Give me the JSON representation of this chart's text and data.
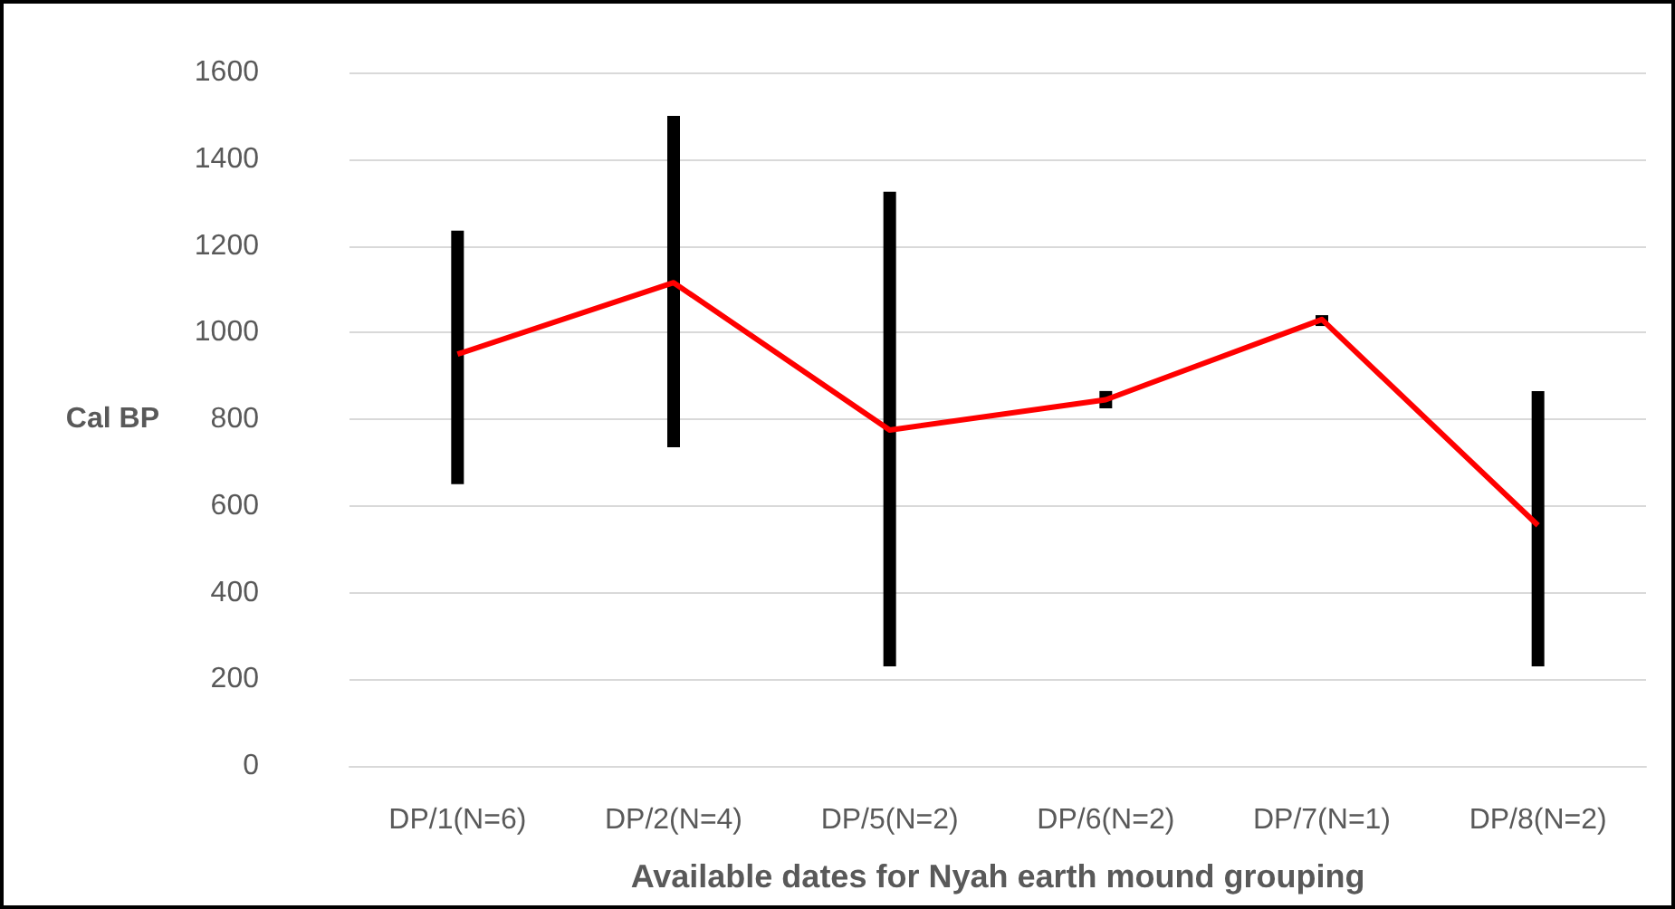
{
  "chart_data": {
    "type": "line",
    "xlabel": "Available dates for Nyah earth mound grouping",
    "ylabel": "Cal BP",
    "categories": [
      "DP/1(N=6)",
      "DP/2(N=4)",
      "DP/5(N=2)",
      "DP/6(N=2)",
      "DP/7(N=1)",
      "DP/8(N=2)"
    ],
    "series": [
      {
        "color": "#ff0000",
        "values": [
          950,
          1115,
          775,
          845,
          1030,
          555
        ],
        "errors": [
          [
            650,
            1235
          ],
          [
            735,
            1500
          ],
          [
            230,
            1325
          ],
          [
            825,
            865
          ],
          [
            1015,
            1040
          ],
          [
            230,
            865
          ]
        ]
      }
    ],
    "ylim": [
      0,
      1600
    ],
    "yticks": [
      0,
      200,
      400,
      600,
      800,
      1000,
      1200,
      1400,
      1600
    ],
    "grid": "y",
    "marker": "none",
    "line_style": "solid"
  }
}
